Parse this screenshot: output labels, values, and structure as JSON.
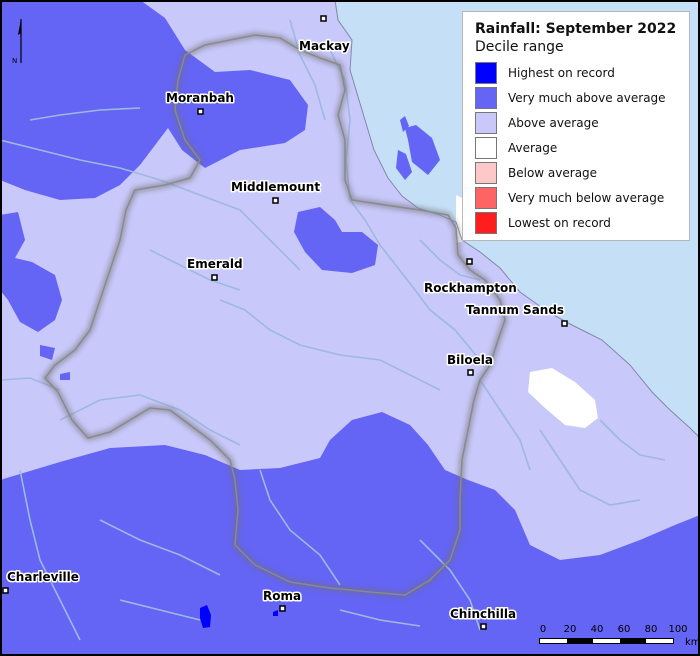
{
  "legend": {
    "title": "Rainfall: September 2022",
    "subtitle": "Decile range",
    "items": [
      {
        "label": "Highest on record",
        "color": "#0000ff"
      },
      {
        "label": "Very much above average",
        "color": "#6464f5"
      },
      {
        "label": "Above average",
        "color": "#c8c8fa"
      },
      {
        "label": "Average",
        "color": "#ffffff"
      },
      {
        "label": "Below average",
        "color": "#ffc8c8"
      },
      {
        "label": "Very much below average",
        "color": "#ff6464"
      },
      {
        "label": "Lowest on record",
        "color": "#ff1e1e"
      }
    ]
  },
  "north_arrow": {
    "label": "N"
  },
  "places": [
    {
      "name": "Mackay"
    },
    {
      "name": "Moranbah"
    },
    {
      "name": "Middlemount"
    },
    {
      "name": "Emerald"
    },
    {
      "name": "Rockhampton"
    },
    {
      "name": "Tannum Sands"
    },
    {
      "name": "Biloela"
    },
    {
      "name": "Charleville"
    },
    {
      "name": "Roma"
    },
    {
      "name": "Chinchilla"
    }
  ],
  "scale_bar": {
    "ticks": [
      "0",
      "20",
      "40",
      "60",
      "80",
      "100"
    ],
    "unit": "km"
  },
  "colors": {
    "sea": "#c4dff6",
    "above_average": "#c8c8fa",
    "very_much_above_average": "#6464f5",
    "highest_on_record": "#0000ff",
    "average": "#ffffff",
    "rivers": "#9db9e0",
    "catchment_boundary": "#808080"
  }
}
